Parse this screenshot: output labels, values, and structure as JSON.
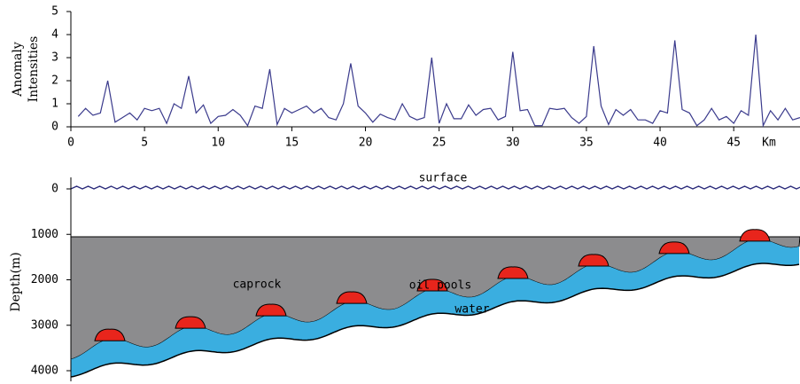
{
  "chart_data": [
    {
      "type": "line",
      "ylabel": [
        "Anomaly",
        "Intensities"
      ],
      "xlabel": "Km",
      "xlim": [
        0,
        49.5
      ],
      "ylim": [
        0,
        5
      ],
      "xticks": [
        0,
        5,
        10,
        15,
        20,
        25,
        30,
        35,
        40,
        45
      ],
      "yticks": [
        0,
        1,
        2,
        3,
        4,
        5
      ],
      "series": [
        {
          "color": "#3a3a8c",
          "x": [
            0.5,
            1,
            1.5,
            2,
            2.5,
            3,
            3.5,
            4,
            4.5,
            5,
            5.5,
            6,
            6.5,
            7,
            7.5,
            8,
            8.5,
            9,
            9.5,
            10,
            10.5,
            11,
            11.5,
            12,
            12.5,
            13,
            13.5,
            14,
            14.5,
            15,
            15.5,
            16,
            16.5,
            17,
            17.5,
            18,
            18.5,
            19,
            19.5,
            20,
            20.5,
            21,
            21.5,
            22,
            22.5,
            23,
            23.5,
            24,
            24.5,
            25,
            25.5,
            26,
            26.5,
            27,
            27.5,
            28,
            28.5,
            29,
            29.5,
            30,
            30.5,
            31,
            31.5,
            32,
            32.5,
            33,
            33.5,
            34,
            34.5,
            35,
            35.5,
            36,
            36.5,
            37,
            37.5,
            38,
            38.5,
            39,
            39.5,
            40,
            40.5,
            41,
            41.5,
            42,
            42.5,
            43,
            43.5,
            44,
            44.5,
            45,
            45.5,
            46,
            46.5,
            47,
            47.5,
            48,
            48.5,
            49,
            49.5
          ],
          "values": [
            0.45,
            0.8,
            0.5,
            0.6,
            2.0,
            0.2,
            0.4,
            0.6,
            0.3,
            0.8,
            0.7,
            0.8,
            0.15,
            1.0,
            0.8,
            2.2,
            0.6,
            0.95,
            0.15,
            0.45,
            0.5,
            0.75,
            0.5,
            0.05,
            0.9,
            0.8,
            2.5,
            0.1,
            0.8,
            0.6,
            0.75,
            0.9,
            0.6,
            0.8,
            0.4,
            0.3,
            1.0,
            2.75,
            0.9,
            0.6,
            0.2,
            0.55,
            0.4,
            0.3,
            1.0,
            0.45,
            0.3,
            0.4,
            3.0,
            0.15,
            1.0,
            0.35,
            0.35,
            0.95,
            0.5,
            0.75,
            0.8,
            0.3,
            0.45,
            3.25,
            0.7,
            0.75,
            0.05,
            0.05,
            0.8,
            0.75,
            0.8,
            0.4,
            0.15,
            0.45,
            3.5,
            0.9,
            0.1,
            0.75,
            0.5,
            0.75,
            0.3,
            0.3,
            0.15,
            0.7,
            0.6,
            3.75,
            0.75,
            0.6,
            0.05,
            0.3,
            0.8,
            0.3,
            0.45,
            0.15,
            0.7,
            0.5,
            4.0,
            0.05,
            0.7,
            0.3,
            0.8,
            0.3,
            0.4
          ]
        }
      ]
    },
    {
      "type": "section",
      "ylabel": "Depth(m)",
      "ylim": [
        0,
        4000
      ],
      "yticks": [
        0,
        1000,
        2000,
        3000,
        4000
      ],
      "annotations": [
        "surface",
        "caprock",
        "oil pools",
        "water"
      ]
    }
  ]
}
